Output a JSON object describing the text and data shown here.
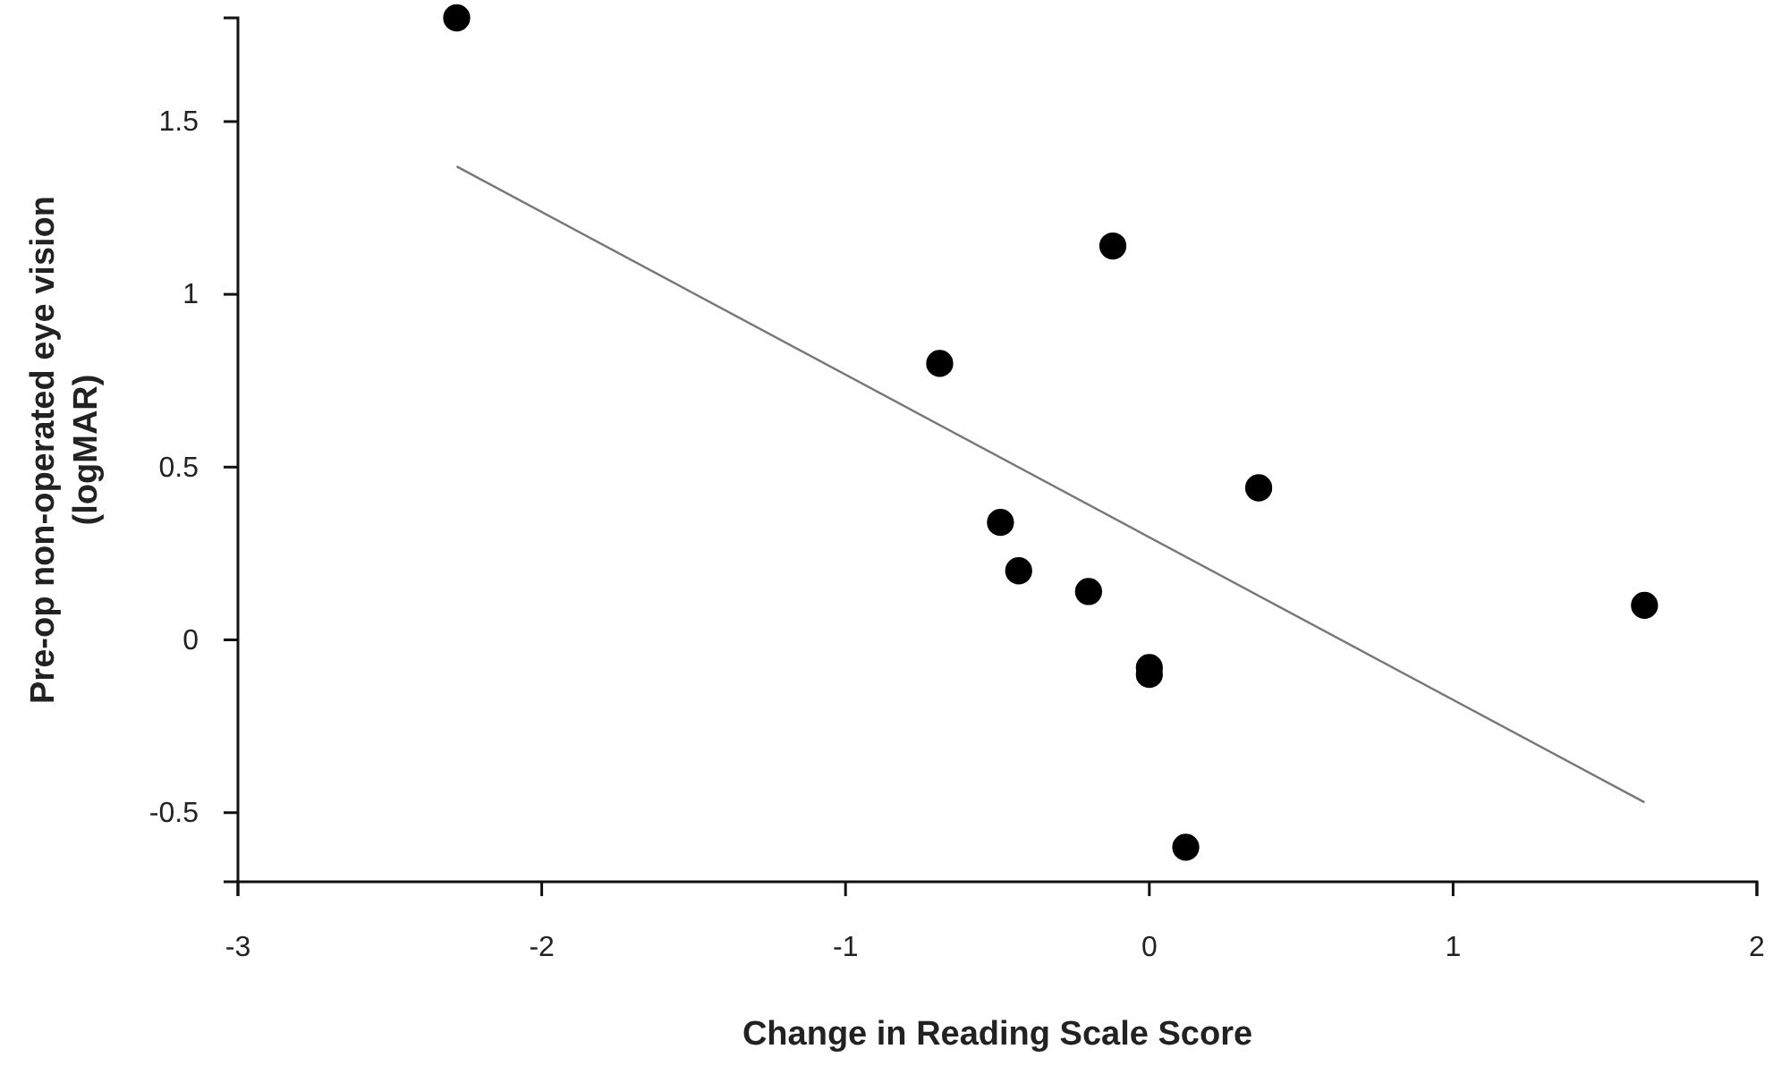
{
  "chart_data": {
    "type": "scatter",
    "xlabel": "Change in Reading Scale Score",
    "ylabel": "Pre-op non-operated eye vision\n(logMAR)",
    "xlim": [
      -3,
      2
    ],
    "ylim": [
      -0.7,
      1.8
    ],
    "xticks": [
      -3,
      -2,
      -1,
      0,
      1,
      2
    ],
    "yticks": [
      -0.5,
      0,
      0.5,
      1,
      1.5
    ],
    "grid": false,
    "series": [
      {
        "marker": "circle",
        "color": "#000000",
        "x": [
          -2.28,
          -0.69,
          -0.12,
          -0.49,
          -0.43,
          -0.2,
          0,
          0,
          0.36,
          1.63,
          0.12
        ],
        "values": [
          1.8,
          0.8,
          1.14,
          0.34,
          0.2,
          0.14,
          -0.08,
          -0.1,
          0.44,
          0.1,
          -0.6
        ]
      },
      {
        "type": "line",
        "marker": "none",
        "color": "#777777",
        "x": [
          -2.28,
          1.63
        ],
        "values": [
          1.37,
          -0.47
        ]
      }
    ]
  }
}
